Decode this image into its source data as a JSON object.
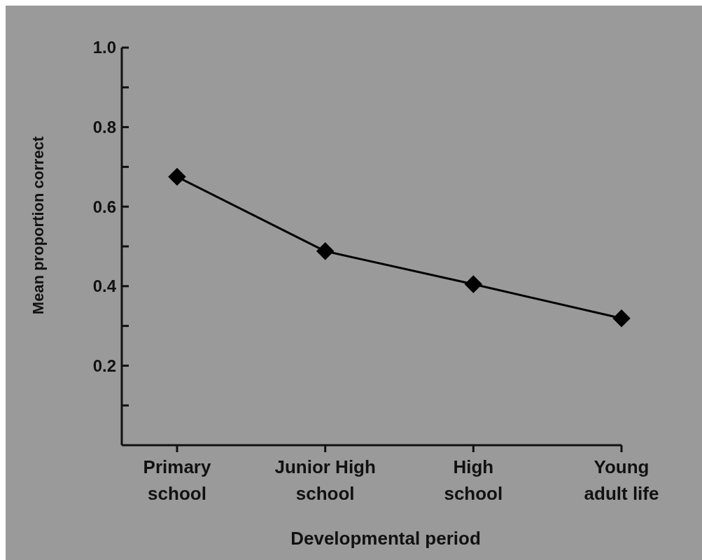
{
  "chart_data": {
    "type": "line",
    "xlabel": "Developmental period",
    "ylabel": "Mean proportion correct",
    "categories": [
      "Primary\nschool",
      "Junior High\nschool",
      "High\nschool",
      "Young\nadult life"
    ],
    "series": [
      {
        "color": "#000000",
        "values": [
          0.675,
          0.488,
          0.405,
          0.319
        ]
      }
    ],
    "ylim": [
      0,
      1
    ],
    "yticks": [
      {
        "value": 0.1,
        "label": null
      },
      {
        "value": 0.2,
        "label": "0.2"
      },
      {
        "value": 0.3,
        "label": null
      },
      {
        "value": 0.4,
        "label": "0.4"
      },
      {
        "value": 0.5,
        "label": null
      },
      {
        "value": 0.6,
        "label": "0.6"
      },
      {
        "value": 0.7,
        "label": null
      },
      {
        "value": 0.8,
        "label": "0.8"
      },
      {
        "value": 0.9,
        "label": null
      },
      {
        "value": 1,
        "label": "1.0"
      }
    ],
    "grid": false,
    "marker": "diamond",
    "line_style": "solid"
  }
}
